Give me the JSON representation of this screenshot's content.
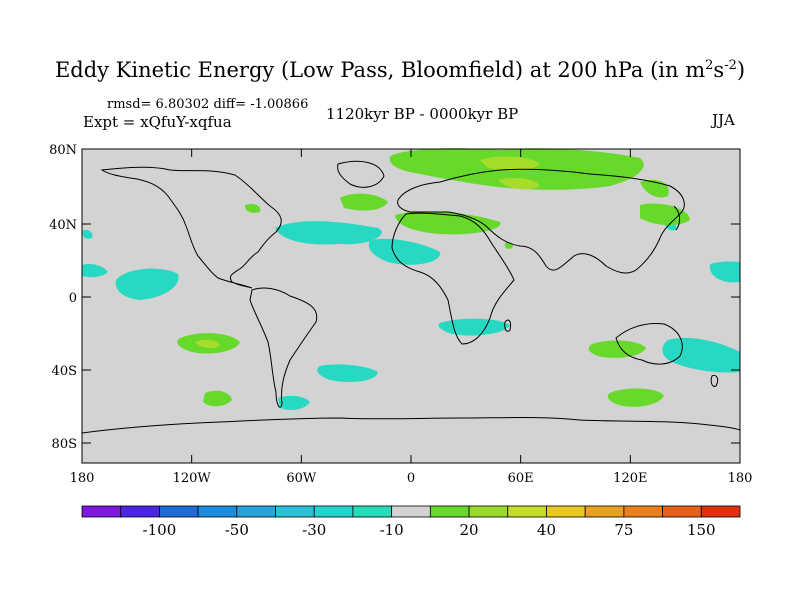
{
  "title": "Eddy Kinetic Energy (Low Pass, Bloomfield) at 200 hPa (in m",
  "title_sup1": "2",
  "title_mid": "s",
  "title_sup2": "-2",
  "title_end": ")",
  "stats": "rmsd= 6.80302 diff= -1.00866",
  "experiment": "Expt = xQfuY-xqfua",
  "period": "1120kyr BP - 0000kyr BP",
  "season": "JJA",
  "colors": {
    "background": "#d3d3d3",
    "teal": "#27d9c2",
    "green": "#66d92a",
    "lightgreen": "#a7dc2a"
  },
  "lat_ticks": [
    "80N",
    "40N",
    "0",
    "40S",
    "80S"
  ],
  "lon_ticks": [
    "180",
    "120W",
    "60W",
    "0",
    "60E",
    "120E",
    "180"
  ],
  "colorbar": {
    "colors": [
      "#7d18dc",
      "#4b25e1",
      "#1d6ad8",
      "#1b8ddf",
      "#25a4d9",
      "#2ac1d8",
      "#24d4cf",
      "#27dcb9",
      "#d3d3d3",
      "#66d92a",
      "#98d92a",
      "#c3db2a",
      "#e8c923",
      "#e8a020",
      "#e8811d",
      "#e85f18",
      "#e2300d"
    ],
    "labels": [
      "-100",
      "-50",
      "-30",
      "-10",
      "20",
      "40",
      "75",
      "150"
    ]
  }
}
